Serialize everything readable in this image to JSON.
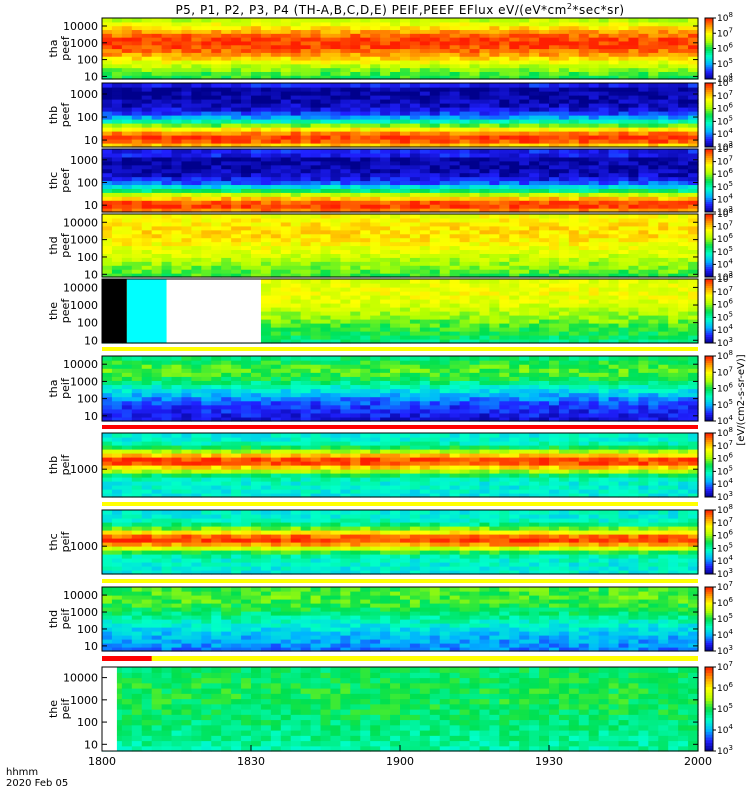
{
  "title": {
    "prefix": "P5, P1, P2, P3, P4 (TH-A,B,C,D,E) PEIF,PEEF EFlux eV/(eV*cm",
    "sup": "2",
    "suffix": "*sec*sr)"
  },
  "colorbar_units": "[eV/(cm2-s-sr-eV)]",
  "colormap": [
    "#00008c",
    "#2020ff",
    "#00b4ff",
    "#00ffc8",
    "#00e050",
    "#b4ff00",
    "#ffff00",
    "#ff9600",
    "#ff1e00"
  ],
  "time_axis": {
    "label": "hhmm",
    "date": "2020 Feb 05",
    "ticks": [
      "1800",
      "1830",
      "1900",
      "1930",
      "2000"
    ],
    "range_minutes": [
      0,
      120
    ]
  },
  "chart_data": [
    {
      "type": "heatmap",
      "panel": "tha-peef",
      "ylabel": [
        "tha",
        "peef"
      ],
      "yscale": "log",
      "ylim_eV": [
        7,
        30000
      ],
      "yticks": [
        "10",
        "100",
        "1000",
        "10000"
      ],
      "colorbar": {
        "log_min": 4,
        "log_max": 8,
        "tick_exponents": [
          4,
          5,
          6,
          7,
          8
        ]
      },
      "peak_log_energy": 3.0,
      "width": 1.4,
      "peak_color_value": 0.97,
      "floor": 0.45,
      "band_edges": [],
      "missing_intervals_min": [],
      "status_bar": {
        "color": "#ff0000",
        "start": 0,
        "end": 120
      }
    },
    {
      "type": "heatmap",
      "panel": "thb-peef",
      "ylabel": [
        "thb",
        "peef"
      ],
      "yscale": "log",
      "ylim_eV": [
        5,
        3000
      ],
      "yticks": [
        "10",
        "100",
        "1000"
      ],
      "colorbar": {
        "log_min": 3,
        "log_max": 8,
        "tick_exponents": [
          3,
          4,
          5,
          6,
          7,
          8
        ]
      },
      "peak_log_energy": 1.1,
      "width": 0.75,
      "peak_color_value": 0.97,
      "floor": 0.02,
      "band_edges": [
        3.25,
        3.4
      ],
      "missing_intervals_min": [],
      "status_bar": {
        "color": "#ff0000",
        "start": 0,
        "end": 120
      }
    },
    {
      "type": "heatmap",
      "panel": "thc-peef",
      "ylabel": [
        "thc",
        "peef"
      ],
      "yscale": "log",
      "ylim_eV": [
        5,
        3000
      ],
      "yticks": [
        "10",
        "100",
        "1000"
      ],
      "colorbar": {
        "log_min": 3,
        "log_max": 8,
        "tick_exponents": [
          3,
          4,
          5,
          6,
          7,
          8
        ]
      },
      "peak_log_energy": 1.0,
      "width": 0.75,
      "peak_color_value": 0.97,
      "floor": 0.02,
      "band_edges": [
        3.15,
        3.4
      ],
      "missing_intervals_min": [],
      "status_bar": {
        "color": "#ff0000",
        "start": 0,
        "end": 120
      }
    },
    {
      "type": "heatmap",
      "panel": "thd-peef",
      "ylabel": [
        "thd",
        "peef"
      ],
      "yscale": "log",
      "ylim_eV": [
        7,
        30000
      ],
      "yticks": [
        "10",
        "100",
        "1000",
        "10000"
      ],
      "colorbar": {
        "log_min": 3,
        "log_max": 8,
        "tick_exponents": [
          3,
          4,
          5,
          6,
          7,
          8
        ]
      },
      "peak_log_energy": 3.5,
      "width": 2.2,
      "peak_color_value": 0.78,
      "floor": 0.45,
      "band_edges": [],
      "missing_intervals_min": [],
      "status_bar": {
        "color": "#ff0000",
        "start": 0,
        "end": 120
      }
    },
    {
      "type": "heatmap",
      "panel": "the-peef",
      "ylabel": [
        "the",
        "peef"
      ],
      "yscale": "log",
      "ylim_eV": [
        7,
        30000
      ],
      "yticks": [
        "10",
        "100",
        "1000",
        "10000"
      ],
      "colorbar": {
        "log_min": 3,
        "log_max": 8,
        "tick_exponents": [
          3,
          4,
          5,
          6,
          7,
          8
        ]
      },
      "peak_log_energy": 3.8,
      "width": 2.2,
      "peak_color_value": 0.72,
      "floor": 0.4,
      "band_edges": [],
      "missing_intervals_min": [
        {
          "start": 0,
          "end": 5,
          "color": "#000000"
        },
        {
          "start": 5,
          "end": 13,
          "color": "#00ffff"
        },
        {
          "start": 13,
          "end": 32,
          "color": "#ffffff"
        }
      ],
      "status_bar": {
        "color": "#ffff00",
        "start": 0,
        "end": 120
      }
    },
    {
      "type": "heatmap",
      "panel": "tha-peif",
      "ylabel": [
        "tha",
        "peif"
      ],
      "yscale": "log",
      "ylim_eV": [
        5,
        30000
      ],
      "yticks": [
        "10",
        "100",
        "1000",
        "10000"
      ],
      "colorbar": {
        "log_min": 4,
        "log_max": 8,
        "tick_exponents": [
          4,
          5,
          6,
          7,
          8
        ]
      },
      "peak_log_energy": 3.7,
      "width": 1.5,
      "peak_color_value": 0.55,
      "floor": 0.08,
      "band_edges": [],
      "missing_intervals_min": [],
      "status_bar": {
        "color": "#ff0000",
        "start": 0,
        "end": 120
      }
    },
    {
      "type": "heatmap",
      "panel": "thb-peif",
      "ylabel": [
        "thb",
        "peif"
      ],
      "yscale": "log",
      "ylim_eV": [
        100,
        20000
      ],
      "yticks": [
        "1000"
      ],
      "colorbar": {
        "log_min": 3,
        "log_max": 8,
        "tick_exponents": [
          3,
          4,
          5,
          6,
          7,
          8
        ]
      },
      "peak_log_energy": 3.3,
      "width": 0.4,
      "peak_color_value": 0.97,
      "floor": 0.35,
      "band_edges": [],
      "missing_intervals_min": [],
      "status_bar": {
        "color": "#ffff00",
        "start": 0,
        "end": 120
      }
    },
    {
      "type": "heatmap",
      "panel": "thc-peif",
      "ylabel": [
        "thc",
        "peif"
      ],
      "yscale": "log",
      "ylim_eV": [
        100,
        20000
      ],
      "yticks": [
        "1000"
      ],
      "colorbar": {
        "log_min": 3,
        "log_max": 8,
        "tick_exponents": [
          3,
          4,
          5,
          6,
          7,
          8
        ]
      },
      "peak_log_energy": 3.25,
      "width": 0.4,
      "peak_color_value": 0.97,
      "floor": 0.35,
      "band_edges": [],
      "missing_intervals_min": [],
      "status_bar": {
        "color": "#ffff00",
        "start": 0,
        "end": 120
      }
    },
    {
      "type": "heatmap",
      "panel": "thd-peif",
      "ylabel": [
        "thd",
        "peif"
      ],
      "yscale": "log",
      "ylim_eV": [
        5,
        30000
      ],
      "yticks": [
        "10",
        "100",
        "1000",
        "10000"
      ],
      "colorbar": {
        "log_min": 3,
        "log_max": 7,
        "tick_exponents": [
          3,
          4,
          5,
          6,
          7
        ]
      },
      "peak_log_energy": 4.0,
      "width": 2.0,
      "peak_color_value": 0.55,
      "floor": 0.18,
      "band_edges": [],
      "missing_intervals_min": [],
      "status_bar": {
        "color": "#ffff00",
        "start": 0,
        "end": 120,
        "red_start": 0,
        "red_end": 10
      }
    },
    {
      "type": "heatmap",
      "panel": "the-peif",
      "ylabel": [
        "the",
        "peif"
      ],
      "yscale": "log",
      "ylim_eV": [
        5,
        30000
      ],
      "yticks": [
        "10",
        "100",
        "1000",
        "10000"
      ],
      "colorbar": {
        "log_min": 3,
        "log_max": 7,
        "tick_exponents": [
          3,
          4,
          5,
          6,
          7
        ]
      },
      "peak_log_energy": 3.3,
      "width": 2.2,
      "peak_color_value": 0.5,
      "floor": 0.38,
      "band_edges": [],
      "missing_intervals_min": [
        {
          "start": 0,
          "end": 3,
          "color": "#ffffff"
        }
      ],
      "status_bar": null
    }
  ]
}
